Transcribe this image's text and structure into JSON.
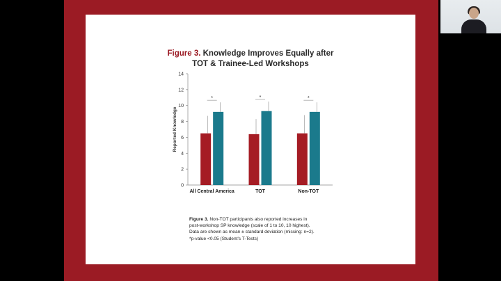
{
  "slide": {
    "frame_color": "#9b1b24",
    "caption_fig": "Figure 3.",
    "caption_lines": [
      " Non-TOT participants also reported increases in",
      "post-workshop SP knowledge (scale of 1 to 10, 10 highest).",
      "Data are shown as mean ±  standard deviation (missing: n=2).",
      "*p-value <0.05 (Student's T-Tests)"
    ]
  },
  "chart_data": {
    "type": "bar",
    "title_fig": "Figure 3.",
    "title_rest": " Knowledge Improves Equally after",
    "title_line2": "TOT & Trainee-Led Workshops",
    "xlabel": "",
    "ylabel": "Reported Knowledge",
    "ylim": [
      0,
      14
    ],
    "yticks": [
      0,
      2,
      4,
      6,
      8,
      10,
      12,
      14
    ],
    "categories": [
      "All Central America",
      "TOT",
      "Non-TOT"
    ],
    "series": [
      {
        "color": "#a51c24",
        "values": [
          6.5,
          6.4,
          6.5
        ],
        "err": [
          2.2,
          1.9,
          2.3
        ]
      },
      {
        "color": "#1b7a8c",
        "values": [
          9.2,
          9.3,
          9.2
        ],
        "err": [
          1.2,
          1.2,
          1.2
        ]
      }
    ],
    "significance": [
      "*",
      "*",
      "*"
    ],
    "grid": false,
    "legend": "none"
  }
}
